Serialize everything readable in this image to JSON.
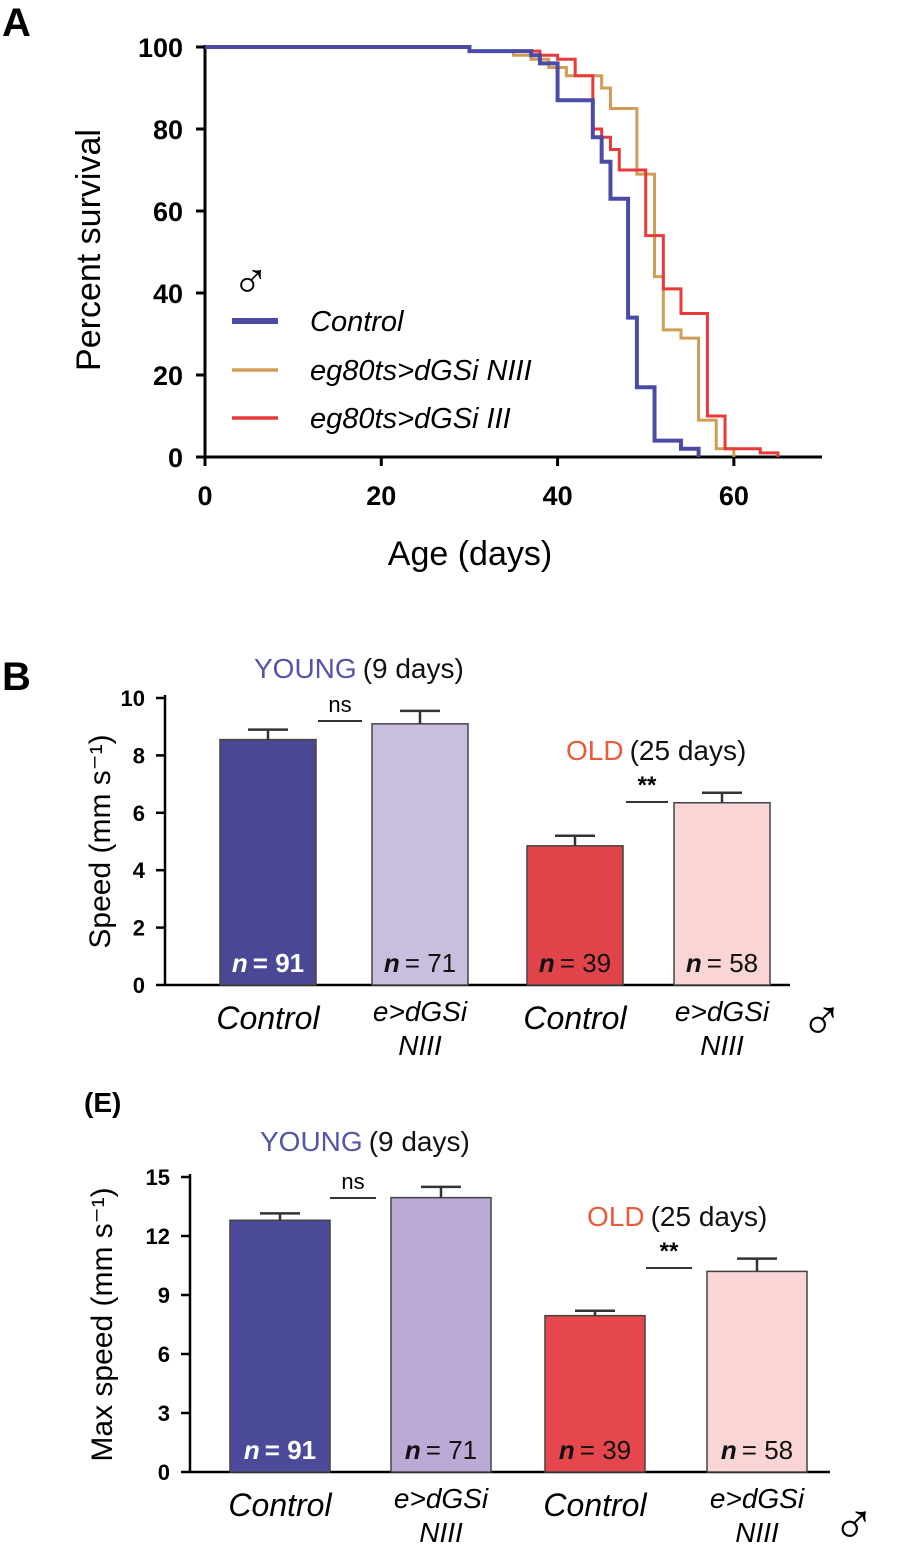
{
  "chart_data": [
    {
      "panel": "A",
      "type": "line",
      "step": true,
      "xlabel": "Age (days)",
      "ylabel": "Percent survival",
      "xlim": [
        0,
        70
      ],
      "ylim": [
        0,
        100
      ],
      "xticks": [
        0,
        20,
        40,
        60
      ],
      "yticks": [
        0,
        20,
        40,
        60,
        80,
        100
      ],
      "sex_symbol": "♂",
      "legend_placement": "lower-left",
      "series": [
        {
          "name": "Control",
          "color": "#4b4ba6",
          "x": [
            0,
            30,
            37,
            38,
            40,
            42,
            44,
            45,
            46,
            48,
            49,
            51,
            52,
            54,
            56
          ],
          "y": [
            100,
            99,
            98,
            96,
            87,
            87,
            78,
            72,
            63,
            34,
            17,
            4,
            4,
            2,
            0
          ]
        },
        {
          "name": "eg80ts>dGSi NIII",
          "color": "#cf9d55",
          "x": [
            0,
            30,
            35,
            37,
            39,
            41,
            43,
            45,
            46,
            47,
            49,
            51,
            52,
            54,
            56,
            58,
            60
          ],
          "y": [
            100,
            99,
            98,
            97,
            95,
            93,
            93,
            90,
            85,
            85,
            69,
            44,
            31,
            29,
            9,
            2,
            0
          ]
        },
        {
          "name": "eg80ts>dGSi III",
          "color": "#e83a3a",
          "x": [
            0,
            30,
            35,
            38,
            40,
            42,
            44,
            45,
            46,
            47,
            49,
            50,
            52,
            54,
            56,
            57,
            59,
            63,
            65
          ],
          "y": [
            100,
            99,
            99,
            98,
            97,
            93,
            80,
            78,
            75,
            70,
            70,
            54,
            41,
            35,
            35,
            10,
            2,
            1,
            0
          ]
        }
      ]
    },
    {
      "panel": "B",
      "type": "bar",
      "ylabel": "Speed (mm s⁻¹)",
      "ylim": [
        0,
        10
      ],
      "yticks": [
        0,
        2,
        4,
        6,
        8,
        10
      ],
      "categories": [
        "Control",
        "e>dGSi NIII",
        "Control",
        "e>dGSi NIII"
      ],
      "category_lines": [
        [
          "Control"
        ],
        [
          "e>dGSi",
          "NIII"
        ],
        [
          "Control"
        ],
        [
          "e>dGSi",
          "NIII"
        ]
      ],
      "values": [
        8.55,
        9.1,
        4.85,
        6.35
      ],
      "errors": [
        0.35,
        0.45,
        0.35,
        0.35
      ],
      "bar_colors": [
        "#4a4795",
        "#c9bedd",
        "#e0444a",
        "#f9d5d6"
      ],
      "n_labels": [
        "n = 91",
        "n = 71",
        "n = 39",
        "n = 58"
      ],
      "n_prefix": "n",
      "n_values": [
        "= 91",
        "= 71",
        "= 39",
        "= 58"
      ],
      "groups": [
        {
          "label": "YOUNG",
          "detail": "(9 days)",
          "color": "#5454a8",
          "significance": "ns"
        },
        {
          "label": "OLD",
          "detail": "(25 days)",
          "color": "#ea5a3c",
          "significance": "**"
        }
      ],
      "sex_symbol": "♂"
    },
    {
      "panel": "(E)",
      "type": "bar",
      "ylabel": "Max speed (mm s⁻¹)",
      "ylim": [
        0,
        15
      ],
      "yticks": [
        0,
        3,
        6,
        9,
        12,
        15
      ],
      "categories": [
        "Control",
        "e>dGSi NIII",
        "Control",
        "e>dGSi NIII"
      ],
      "category_lines": [
        [
          "Control"
        ],
        [
          "e>dGSi",
          "NIII"
        ],
        [
          "Control"
        ],
        [
          "e>dGSi",
          "NIII"
        ]
      ],
      "values": [
        12.8,
        13.95,
        7.95,
        10.2
      ],
      "errors": [
        0.35,
        0.55,
        0.25,
        0.65
      ],
      "bar_colors": [
        "#4c4b9a",
        "#bbaad5",
        "#e5474c",
        "#f9d5d6"
      ],
      "n_labels": [
        "n = 91",
        "n = 71",
        "n = 39",
        "n = 58"
      ],
      "n_prefix": "n",
      "n_values": [
        "= 91",
        "= 71",
        "= 39",
        "= 58"
      ],
      "groups": [
        {
          "label": "YOUNG",
          "detail": "(9 days)",
          "color": "#5454a8",
          "significance": "ns"
        },
        {
          "label": "OLD",
          "detail": "(25 days)",
          "color": "#ea5a3c",
          "significance": "**"
        }
      ],
      "sex_symbol": "♂"
    }
  ]
}
